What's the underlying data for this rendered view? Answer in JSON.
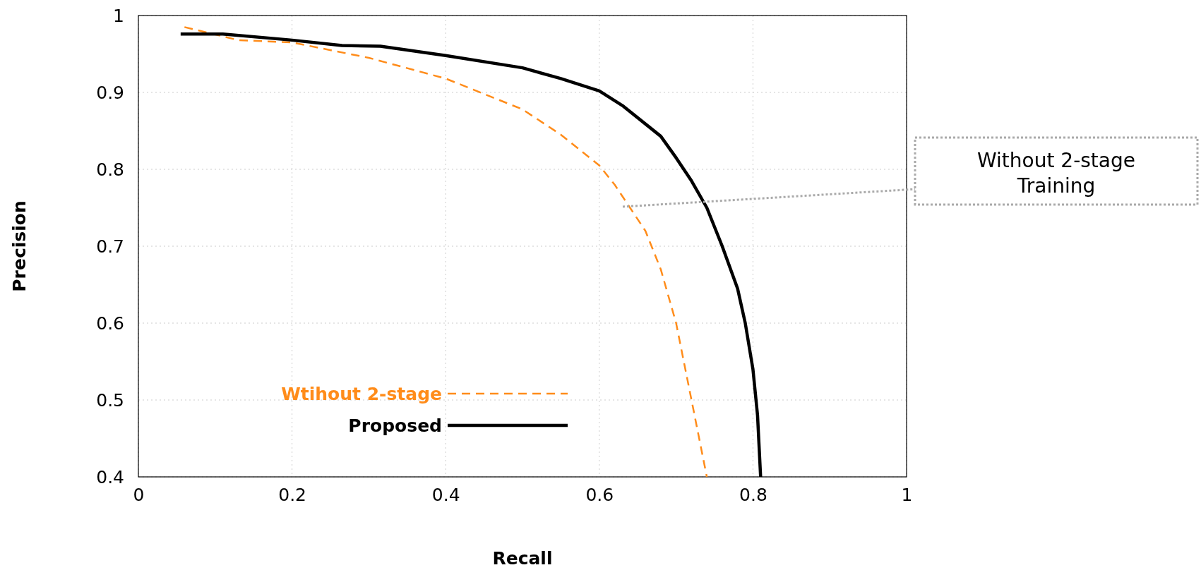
{
  "chart_data": {
    "type": "line",
    "xlabel": "Recall",
    "ylabel": "Precision",
    "xlim": [
      0,
      1
    ],
    "ylim": [
      0.4,
      1
    ],
    "xticks": [
      0,
      0.2,
      0.4,
      0.6,
      0.8,
      1
    ],
    "yticks": [
      0.4,
      0.5,
      0.6,
      0.7,
      0.8,
      0.9,
      1
    ],
    "grid": true,
    "legend": "bottom left",
    "series": [
      {
        "name": "Wtihout 2-stage",
        "color": "#ff8c1a",
        "line_style": "dashed",
        "x": [
          0.06,
          0.13,
          0.2,
          0.3,
          0.4,
          0.5,
          0.55,
          0.6,
          0.62,
          0.64,
          0.66,
          0.68,
          0.7,
          0.72,
          0.74
        ],
        "values": [
          0.985,
          0.968,
          0.965,
          0.945,
          0.918,
          0.878,
          0.845,
          0.805,
          0.78,
          0.75,
          0.72,
          0.67,
          0.6,
          0.5,
          0.4
        ]
      },
      {
        "name": "Proposed",
        "color": "#000000",
        "line_style": "solid",
        "x": [
          0.055,
          0.11,
          0.2,
          0.265,
          0.315,
          0.4,
          0.5,
          0.55,
          0.6,
          0.63,
          0.68,
          0.7,
          0.72,
          0.74,
          0.76,
          0.78,
          0.79,
          0.8,
          0.806,
          0.81
        ],
        "values": [
          0.976,
          0.976,
          0.968,
          0.961,
          0.96,
          0.948,
          0.932,
          0.918,
          0.902,
          0.883,
          0.843,
          0.815,
          0.785,
          0.75,
          0.7,
          0.645,
          0.6,
          0.54,
          0.48,
          0.4
        ]
      }
    ],
    "annotations": [
      "Without 2-stage Training"
    ]
  }
}
